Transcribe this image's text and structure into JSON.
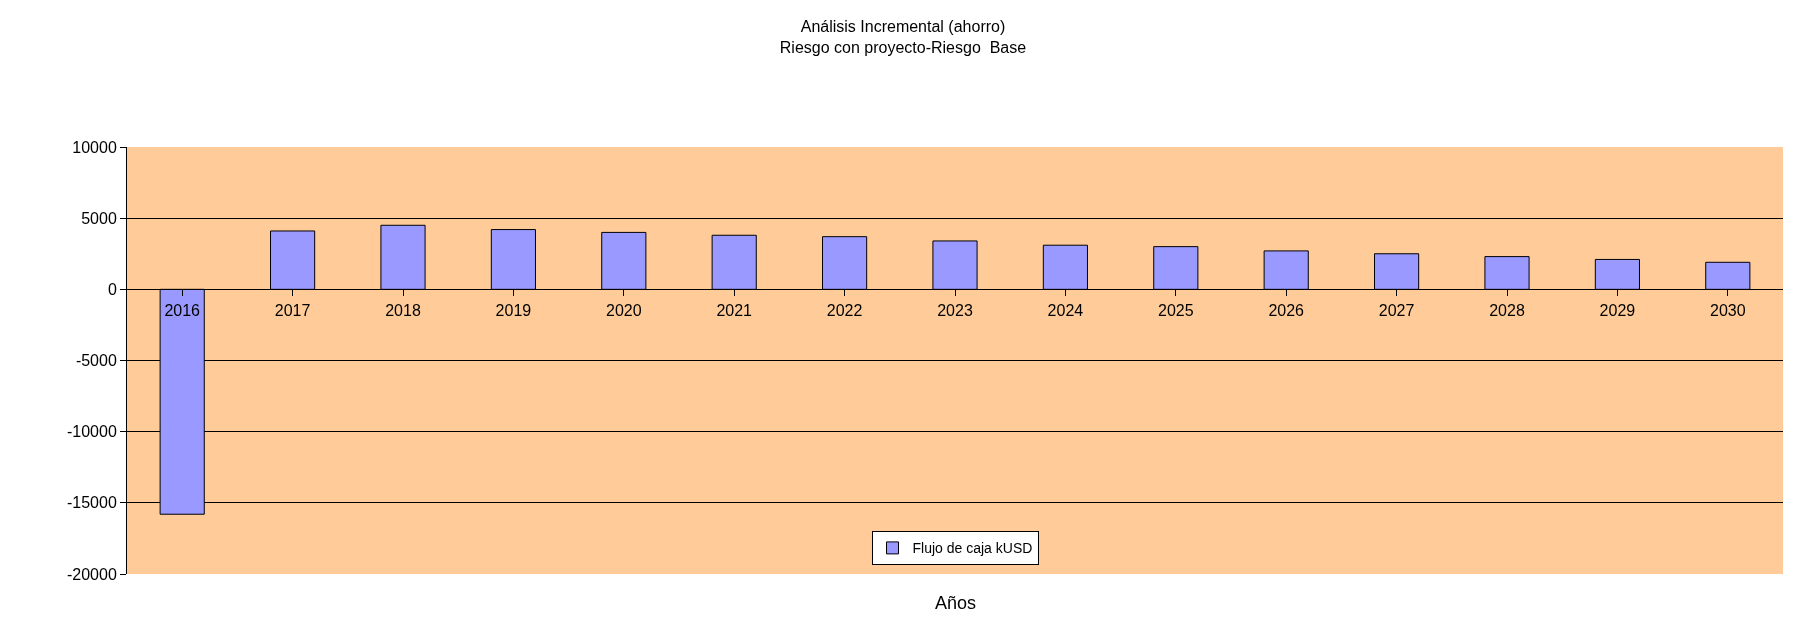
{
  "chart_data": {
    "type": "bar",
    "title": "Análisis Incremental (ahorro)",
    "subtitle": "Riesgo con proyecto-Riesgo  Base",
    "xlabel": "Años",
    "categories": [
      "2016",
      "2017",
      "2018",
      "2019",
      "2020",
      "2021",
      "2022",
      "2023",
      "2024",
      "2025",
      "2026",
      "2027",
      "2028",
      "2029",
      "2030"
    ],
    "series": [
      {
        "name": "Flujo de caja kUSD",
        "color": "#9999ff",
        "values": [
          -15800,
          4100,
          4500,
          4200,
          4000,
          3800,
          3700,
          3400,
          3100,
          3000,
          2700,
          2500,
          2300,
          2100,
          1900
        ]
      }
    ],
    "ylim": [
      -20000,
      10000
    ],
    "yticks": [
      -20000,
      -15000,
      -10000,
      -5000,
      0,
      5000,
      10000
    ],
    "grid": "y",
    "legend": "bottom"
  }
}
